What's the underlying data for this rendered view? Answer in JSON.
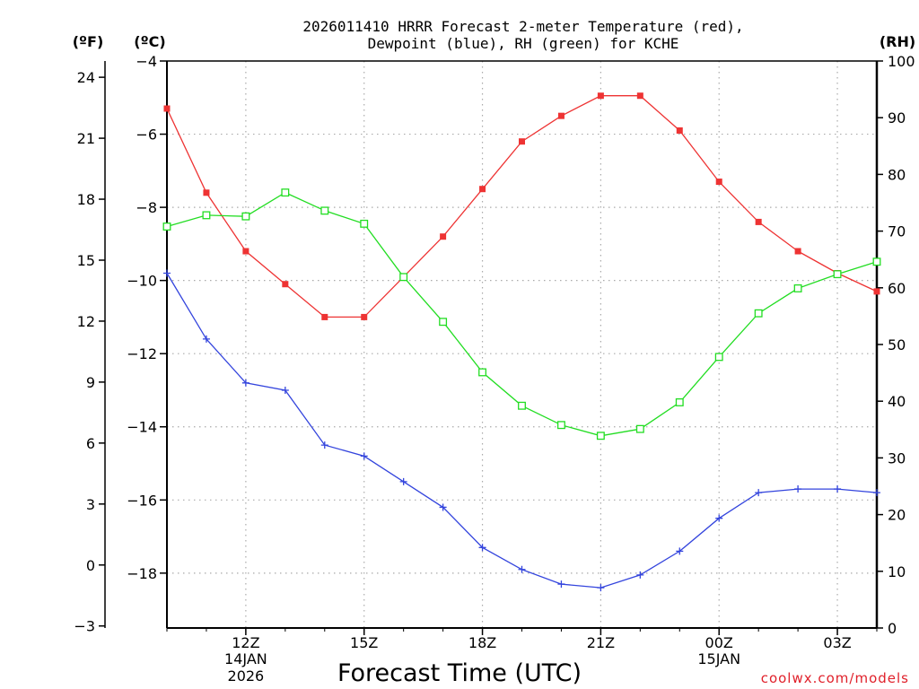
{
  "chart_data": {
    "type": "line",
    "title_line1": "2026011410 HRRR Forecast 2-meter Temperature (red),",
    "title_line2": "Dewpoint (blue), RH (green) for KCHE",
    "xlabel": "Forecast Time (UTC)",
    "credit": "coolwx.com/models",
    "units": {
      "fahrenheit": "(ºF)",
      "celsius": "(ºC)",
      "rh": "(RH)"
    },
    "x_hours": [
      10,
      11,
      12,
      13,
      14,
      15,
      16,
      17,
      18,
      19,
      20,
      21,
      22,
      23,
      24,
      25,
      26,
      27,
      28
    ],
    "xlim": [
      10,
      28
    ],
    "x_ticks": [
      {
        "hour": 12,
        "label": "12Z",
        "date": "14JAN",
        "year": "2026"
      },
      {
        "hour": 15,
        "label": "15Z",
        "date": "",
        "year": ""
      },
      {
        "hour": 18,
        "label": "18Z",
        "date": "",
        "year": ""
      },
      {
        "hour": 21,
        "label": "21Z",
        "date": "",
        "year": ""
      },
      {
        "hour": 24,
        "label": "00Z",
        "date": "15JAN",
        "year": ""
      },
      {
        "hour": 27,
        "label": "03Z",
        "date": "",
        "year": ""
      }
    ],
    "y_celsius": {
      "range": [
        -19.5,
        -4
      ],
      "ticks": [
        -4,
        -6,
        -8,
        -10,
        -12,
        -14,
        -16,
        -18
      ]
    },
    "y_fahrenheit": {
      "ticks": [
        24,
        21,
        18,
        15,
        12,
        9,
        6,
        3,
        0,
        -3
      ]
    },
    "y_rh": {
      "range": [
        0,
        100
      ],
      "ticks": [
        100,
        90,
        80,
        70,
        60,
        50,
        40,
        30,
        20,
        10,
        0
      ]
    },
    "series": [
      {
        "name": "Temperature",
        "units": "C",
        "color": "#ee3333",
        "marker": "filled-square",
        "values": [
          -5.3,
          -7.6,
          -9.2,
          -10.1,
          -11.0,
          -11.0,
          -9.9,
          -8.8,
          -7.5,
          -6.2,
          -5.5,
          -4.95,
          -4.95,
          -5.9,
          -7.3,
          -8.4,
          -9.2,
          -9.8,
          -10.3
        ]
      },
      {
        "name": "Dewpoint",
        "units": "C",
        "color": "#3344dd",
        "marker": "plus",
        "values": [
          -9.8,
          -11.6,
          -12.8,
          -13.0,
          -14.5,
          -14.8,
          -15.5,
          -16.2,
          -17.3,
          -17.9,
          -18.3,
          -18.4,
          -18.05,
          -17.4,
          -16.5,
          -15.8,
          -15.7,
          -15.7,
          -15.8
        ]
      },
      {
        "name": "Relative Humidity",
        "units": "%",
        "color": "#22dd22",
        "marker": "open-square",
        "values": [
          70.8,
          72.8,
          72.6,
          76.8,
          73.6,
          71.3,
          61.9,
          54.0,
          45.1,
          39.2,
          35.8,
          33.9,
          35.1,
          39.8,
          47.8,
          55.5,
          59.9,
          62.4,
          64.6
        ]
      }
    ]
  }
}
